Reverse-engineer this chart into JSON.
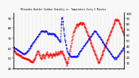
{
  "title": "Milwaukee Weather Outdoor Humidity vs. Temperature Every 5 Minutes",
  "background_color": "#f8f8f8",
  "grid_color": "#aaaaaa",
  "temp_color": "#ff0000",
  "humid_color": "#0000ee",
  "n_points": 288,
  "temp_data": [
    58,
    57,
    57,
    56,
    56,
    55,
    55,
    55,
    54,
    54,
    54,
    54,
    53,
    53,
    53,
    53,
    52,
    52,
    52,
    52,
    52,
    51,
    51,
    51,
    51,
    51,
    50,
    50,
    50,
    50,
    50,
    50,
    49,
    49,
    49,
    49,
    49,
    48,
    48,
    48,
    48,
    48,
    47,
    47,
    47,
    47,
    47,
    47,
    46,
    46,
    47,
    47,
    48,
    48,
    49,
    50,
    51,
    52,
    53,
    54,
    55,
    56,
    57,
    57,
    56,
    55,
    54,
    53,
    52,
    51,
    50,
    49,
    50,
    51,
    52,
    53,
    54,
    53,
    52,
    51,
    50,
    51,
    52,
    53,
    54,
    55,
    56,
    55,
    54,
    53,
    52,
    51,
    52,
    53,
    54,
    55,
    54,
    53,
    52,
    51,
    52,
    53,
    54,
    55,
    54,
    53,
    52,
    53,
    54,
    55,
    56,
    55,
    54,
    53,
    54,
    55,
    56,
    55,
    54,
    55,
    56,
    57,
    56,
    55,
    56,
    57,
    56,
    55,
    54,
    53,
    52,
    51,
    50,
    49,
    48,
    47,
    46,
    45,
    44,
    43,
    45,
    47,
    49,
    51,
    53,
    55,
    57,
    59,
    61,
    63,
    65,
    67,
    69,
    71,
    73,
    75,
    76,
    77,
    78,
    79,
    80,
    81,
    82,
    83,
    84,
    83,
    82,
    83,
    84,
    83,
    84,
    85,
    84,
    85,
    86,
    85,
    84,
    83,
    84,
    85,
    86,
    85,
    84,
    83,
    82,
    81,
    80,
    79,
    78,
    77,
    76,
    75,
    74,
    73,
    72,
    71,
    70,
    69,
    68,
    67,
    66,
    65,
    64,
    63,
    62,
    61,
    60,
    59,
    58,
    57,
    56,
    55,
    54,
    53,
    52,
    51,
    50,
    49,
    48,
    47,
    46,
    45,
    46,
    47,
    48,
    49,
    50,
    51,
    52,
    53,
    54,
    55,
    56,
    57,
    58,
    59,
    60,
    61,
    62,
    63,
    64,
    65,
    66,
    67,
    68,
    69,
    70,
    71,
    72,
    73,
    74,
    75,
    76,
    77,
    78,
    79,
    80,
    81,
    82,
    83,
    84,
    85,
    86,
    87,
    88,
    89,
    88,
    87,
    88,
    89,
    88,
    87,
    88,
    87,
    86,
    85,
    84,
    83,
    82,
    81,
    80,
    79,
    78,
    77,
    76,
    75,
    74,
    73
  ],
  "humid_data": [
    38,
    38,
    37,
    37,
    36,
    36,
    35,
    35,
    34,
    34,
    33,
    33,
    32,
    32,
    31,
    31,
    30,
    30,
    29,
    29,
    28,
    28,
    27,
    27,
    26,
    26,
    25,
    25,
    26,
    26,
    27,
    27,
    28,
    28,
    29,
    30,
    31,
    32,
    33,
    34,
    35,
    36,
    37,
    38,
    39,
    40,
    41,
    42,
    43,
    44,
    45,
    46,
    47,
    48,
    49,
    50,
    51,
    52,
    53,
    54,
    55,
    56,
    57,
    58,
    59,
    60,
    61,
    62,
    63,
    64,
    65,
    66,
    67,
    68,
    67,
    66,
    67,
    68,
    67,
    66,
    65,
    66,
    67,
    68,
    67,
    66,
    65,
    64,
    63,
    62,
    61,
    62,
    63,
    64,
    63,
    62,
    61,
    62,
    63,
    62,
    61,
    62,
    63,
    62,
    61,
    62,
    61,
    60,
    59,
    58,
    59,
    58,
    57,
    56,
    55,
    54,
    53,
    52,
    51,
    50,
    49,
    48,
    49,
    50,
    80,
    90,
    92,
    90,
    85,
    78,
    72,
    66,
    60,
    54,
    50,
    46,
    42,
    38,
    35,
    32,
    29,
    28,
    27,
    26,
    25,
    24,
    23,
    22,
    21,
    20,
    21,
    20,
    21,
    20,
    21,
    20,
    21,
    22,
    21,
    20,
    21,
    20,
    21,
    22,
    21,
    22,
    23,
    24,
    25,
    26,
    27,
    28,
    29,
    30,
    31,
    32,
    33,
    34,
    35,
    36,
    37,
    38,
    39,
    40,
    41,
    42,
    43,
    44,
    45,
    46,
    47,
    48,
    49,
    50,
    51,
    52,
    53,
    54,
    55,
    56,
    57,
    58,
    59,
    60,
    61,
    62,
    63,
    64,
    65,
    66,
    67,
    68,
    67,
    66,
    65,
    64,
    63,
    62,
    61,
    60,
    59,
    58,
    57,
    56,
    55,
    54,
    53,
    52,
    51,
    50,
    49,
    48,
    47,
    46,
    45,
    44,
    43,
    42,
    41,
    40,
    39,
    38,
    37,
    36,
    35,
    34,
    33,
    32,
    31,
    30,
    29,
    28,
    27,
    26,
    25,
    24,
    23,
    22,
    21,
    20,
    19,
    18,
    17,
    18,
    19,
    18,
    17,
    18,
    19,
    20,
    21,
    22,
    23,
    24,
    25,
    26,
    27,
    28,
    29,
    30,
    31,
    32,
    33,
    34,
    35,
    36,
    37,
    38
  ],
  "left_ylim": [
    40,
    95
  ],
  "right_ylim": [
    0,
    100
  ],
  "left_yticks": [
    40,
    50,
    60,
    70,
    80,
    90
  ],
  "right_yticks": [
    10,
    20,
    30,
    40,
    50,
    60,
    70,
    80,
    90,
    100
  ],
  "n_xgrid": 30
}
